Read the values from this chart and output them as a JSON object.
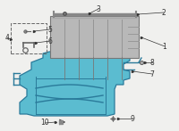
{
  "bg_color": "#f0f0ee",
  "fig_width": 2.0,
  "fig_height": 1.47,
  "dpi": 100,
  "font_size": 5.5,
  "line_color": "#333333",
  "tray_color": "#5bbcd0",
  "tray_edge": "#2a7a9a",
  "battery_face": "#b8b8b8",
  "battery_edge": "#777777",
  "battery_top": "#d0d0d0",
  "small_box_edge": "#666666"
}
